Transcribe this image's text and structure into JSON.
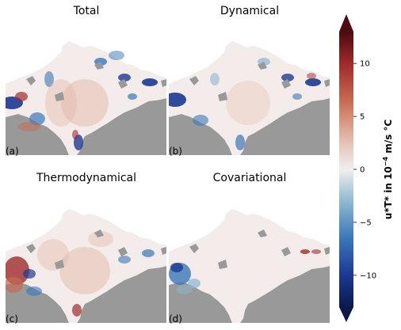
{
  "chart_data": {
    "type": "heatmap",
    "panels": [
      {
        "title": "Total",
        "label": "(a)"
      },
      {
        "title": "Dynamical",
        "label": "(b)"
      },
      {
        "title": "Thermodynamical",
        "label": "(c)"
      },
      {
        "title": "Covariational",
        "label": "(d)"
      }
    ],
    "colorbar": {
      "label_main": "u*T* in 10",
      "label_exp": "−4",
      "label_unit": " m/s °C",
      "range": [
        -13,
        13
      ],
      "extend": "both",
      "ticks": [
        {
          "value": 10,
          "label": "10"
        },
        {
          "value": 5,
          "label": "5"
        },
        {
          "value": 0,
          "label": "0"
        },
        {
          "value": -5,
          "label": "−5"
        },
        {
          "value": -10,
          "label": "−10"
        }
      ],
      "colormap": "diverging dark-blue / white / dark-red"
    },
    "colors": {
      "land": "#999999",
      "ocean_base": "#f4ecea"
    }
  }
}
